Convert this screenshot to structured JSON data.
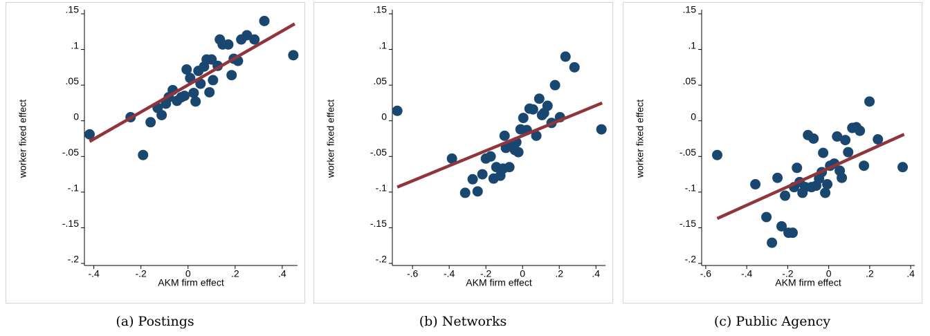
{
  "chart_data": [
    {
      "type": "scatter",
      "caption": "(a) Postings",
      "xlabel": "AKM firm effect",
      "ylabel": "worker fixed effect",
      "xlim": [
        -0.44,
        0.465
      ],
      "ylim": [
        -0.2,
        0.15
      ],
      "xticks": [
        {
          "value": -0.4,
          "label": "-.4"
        },
        {
          "value": -0.2,
          "label": "-.2"
        },
        0,
        {
          "value": 0.2,
          "label": ".2"
        },
        {
          "value": 0.4,
          "label": ".4"
        }
      ],
      "yticks": [
        {
          "value": -0.2,
          "label": "-.2"
        },
        {
          "value": -0.15,
          "label": "-.15"
        },
        {
          "value": -0.1,
          "label": "-.1"
        },
        {
          "value": -0.05,
          "label": "-.05"
        },
        0,
        {
          "value": 0.05,
          "label": ".05"
        },
        {
          "value": 0.1,
          "label": ".1"
        },
        {
          "value": 0.15,
          "label": ".15"
        }
      ],
      "series": [
        {
          "color": "#1a476f",
          "x": [
            -0.418,
            -0.244,
            -0.191,
            -0.159,
            -0.129,
            -0.112,
            -0.094,
            -0.082,
            -0.065,
            -0.047,
            -0.029,
            -0.015,
            -0.006,
            0.009,
            0.024,
            0.032,
            0.044,
            0.053,
            0.068,
            0.079,
            0.091,
            0.1,
            0.106,
            0.126,
            0.135,
            0.147,
            0.171,
            0.185,
            0.194,
            0.212,
            0.226,
            0.25,
            0.282,
            0.324,
            0.447
          ],
          "values": [
            -0.019,
            0.005,
            -0.048,
            -0.002,
            0.018,
            0.008,
            0.024,
            0.033,
            0.043,
            0.028,
            0.033,
            0.035,
            0.072,
            0.06,
            0.039,
            0.027,
            0.07,
            0.052,
            0.076,
            0.086,
            0.04,
            0.086,
            0.057,
            0.077,
            0.114,
            0.107,
            0.107,
            0.064,
            0.087,
            0.084,
            0.114,
            0.12,
            0.114,
            0.14,
            0.092
          ]
        }
      ],
      "fit_line": {
        "color": "#90353b",
        "x": [
          -0.418,
          0.453
        ],
        "values": [
          -0.029,
          0.136
        ]
      }
    },
    {
      "type": "scatter",
      "caption": "(b) Networks",
      "xlabel": "AKM firm effect",
      "ylabel": "worker fixed effect",
      "xlim": [
        -0.71,
        0.452
      ],
      "ylim": [
        -0.2,
        0.15
      ],
      "xticks": [
        {
          "value": -0.6,
          "label": "-.6"
        },
        {
          "value": -0.4,
          "label": "-.4"
        },
        {
          "value": -0.2,
          "label": "-.2"
        },
        0,
        {
          "value": 0.2,
          "label": ".2"
        },
        {
          "value": 0.4,
          "label": ".4"
        }
      ],
      "yticks": [
        {
          "value": -0.2,
          "label": "-.2"
        },
        {
          "value": -0.15,
          "label": "-.15"
        },
        {
          "value": -0.1,
          "label": "-.1"
        },
        {
          "value": -0.05,
          "label": "-.05"
        },
        0,
        {
          "value": 0.05,
          "label": ".05"
        },
        {
          "value": 0.1,
          "label": ".1"
        },
        {
          "value": 0.15,
          "label": ".15"
        }
      ],
      "series": [
        {
          "color": "#1a476f",
          "x": [
            -0.683,
            -0.385,
            -0.313,
            -0.272,
            -0.245,
            -0.219,
            -0.2,
            -0.174,
            -0.158,
            -0.143,
            -0.121,
            -0.106,
            -0.098,
            -0.091,
            -0.072,
            -0.06,
            -0.042,
            -0.034,
            -0.023,
            -0.011,
            0.004,
            0.023,
            0.038,
            0.057,
            0.075,
            0.091,
            0.106,
            0.117,
            0.136,
            0.158,
            0.177,
            0.204,
            0.234,
            0.283,
            0.43
          ],
          "values": [
            0.014,
            -0.053,
            -0.101,
            -0.082,
            -0.099,
            -0.075,
            -0.053,
            -0.05,
            -0.081,
            -0.065,
            -0.077,
            -0.067,
            -0.021,
            -0.038,
            -0.065,
            -0.035,
            -0.041,
            -0.03,
            -0.044,
            -0.012,
            0.004,
            -0.013,
            0.017,
            0.016,
            -0.021,
            0.031,
            0.008,
            0.011,
            0.021,
            -0.003,
            0.05,
            0.005,
            0.09,
            0.075,
            -0.012
          ]
        }
      ],
      "fit_line": {
        "color": "#90353b",
        "x": [
          -0.683,
          0.434
        ],
        "values": [
          -0.093,
          0.025
        ]
      }
    },
    {
      "type": "scatter",
      "caption": "(c) Public Agency",
      "xlabel": "AKM firm effect",
      "ylabel": "worker fixed effect",
      "xlim": [
        -0.62,
        0.42
      ],
      "ylim": [
        -0.2,
        0.15
      ],
      "xticks": [
        {
          "value": -0.6,
          "label": "-.6"
        },
        {
          "value": -0.4,
          "label": "-.4"
        },
        {
          "value": -0.2,
          "label": "-.2"
        },
        0,
        {
          "value": 0.2,
          "label": ".2"
        },
        {
          "value": 0.4,
          "label": ".4"
        }
      ],
      "yticks": [
        {
          "value": -0.2,
          "label": "-.2"
        },
        {
          "value": -0.15,
          "label": "-.15"
        },
        {
          "value": -0.1,
          "label": "-.1"
        },
        {
          "value": -0.05,
          "label": "-.05"
        },
        0,
        {
          "value": 0.05,
          "label": ".05"
        },
        {
          "value": 0.1,
          "label": ".1"
        },
        {
          "value": 0.15,
          "label": ".15"
        }
      ],
      "series": [
        {
          "color": "#1a476f",
          "x": [
            -0.544,
            -0.358,
            -0.304,
            -0.277,
            -0.25,
            -0.23,
            -0.213,
            -0.196,
            -0.176,
            -0.169,
            -0.155,
            -0.142,
            -0.128,
            -0.115,
            -0.101,
            -0.084,
            -0.074,
            -0.061,
            -0.047,
            -0.034,
            -0.027,
            -0.017,
            -0.007,
            0.007,
            0.027,
            0.041,
            0.054,
            0.064,
            0.081,
            0.095,
            0.115,
            0.135,
            0.152,
            0.172,
            0.199,
            0.24,
            0.361
          ],
          "values": [
            -0.048,
            -0.089,
            -0.135,
            -0.171,
            -0.08,
            -0.148,
            -0.105,
            -0.157,
            -0.157,
            -0.093,
            -0.066,
            -0.086,
            -0.101,
            -0.093,
            -0.02,
            -0.093,
            -0.025,
            -0.091,
            -0.081,
            -0.072,
            -0.045,
            -0.101,
            -0.089,
            -0.063,
            -0.06,
            -0.022,
            -0.07,
            -0.08,
            -0.027,
            -0.044,
            -0.01,
            -0.009,
            -0.014,
            -0.063,
            0.027,
            -0.026,
            -0.065
          ]
        }
      ],
      "fit_line": {
        "color": "#90353b",
        "x": [
          -0.544,
          0.368
        ],
        "values": [
          -0.137,
          -0.019
        ]
      }
    }
  ]
}
